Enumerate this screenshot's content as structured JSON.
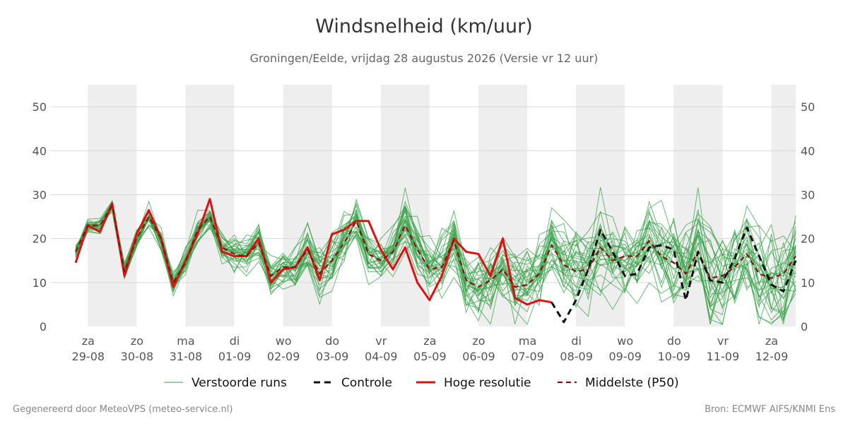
{
  "title": "Windsnelheid (km/uur)",
  "subtitle": "Groningen/Eelde, vrijdag 28 augustus 2026 (Versie vr 12 uur)",
  "footer": {
    "left": "Gegenereerd door MeteoVPS (meteo-service.nl)",
    "right": "Bron: ECMWF AIFS/KNMI Ens"
  },
  "colors": {
    "ensemble": "#3aa14a",
    "control": "#111111",
    "high_res": "#dd1111",
    "median": "#8b1111",
    "night_band": "#eeeeee",
    "grid": "#d9d9d9"
  },
  "chart_data": {
    "type": "line",
    "x_unit": "days since 29-08 00:00",
    "x_range": [
      -0.25,
      14.5
    ],
    "ylim": [
      0,
      55
    ],
    "yticks": [
      0,
      10,
      20,
      30,
      40,
      50
    ],
    "grid": "horizontal",
    "legend_position": "bottom",
    "day_labels": [
      {
        "day": "za",
        "date": "29-08"
      },
      {
        "day": "zo",
        "date": "30-08"
      },
      {
        "day": "ma",
        "date": "31-08"
      },
      {
        "day": "di",
        "date": "01-09"
      },
      {
        "day": "wo",
        "date": "02-09"
      },
      {
        "day": "do",
        "date": "03-09"
      },
      {
        "day": "vr",
        "date": "04-09"
      },
      {
        "day": "za",
        "date": "05-09"
      },
      {
        "day": "zo",
        "date": "06-09"
      },
      {
        "day": "ma",
        "date": "07-09"
      },
      {
        "day": "di",
        "date": "08-09"
      },
      {
        "day": "wo",
        "date": "09-09"
      },
      {
        "day": "do",
        "date": "10-09"
      },
      {
        "day": "vr",
        "date": "11-09"
      },
      {
        "day": "za",
        "date": "12-09"
      }
    ],
    "legend": [
      {
        "key": "ensemble",
        "label": "Verstoorde runs"
      },
      {
        "key": "control",
        "label": "Controle"
      },
      {
        "key": "high_res",
        "label": "Hoge resolutie"
      },
      {
        "key": "median",
        "label": "Middelste (P50)"
      }
    ],
    "series": [
      {
        "name": "Hoge resolutie",
        "key": "high_res",
        "x0": -0.25,
        "dx": 0.25,
        "values": [
          14.5,
          23,
          21.5,
          28,
          11.5,
          21,
          26.5,
          20,
          9,
          15,
          21,
          29,
          17,
          16,
          16,
          20,
          10,
          13,
          13.5,
          18,
          10.5,
          21,
          22,
          24,
          24,
          17.5,
          13,
          18,
          10,
          6,
          11.5,
          20,
          17,
          16.5,
          11.5,
          20,
          6.5,
          5,
          6,
          5.5
        ]
      },
      {
        "name": "Middelste (P50)",
        "key": "median",
        "x0": -0.25,
        "dx": 0.25,
        "values": [
          17,
          23,
          23,
          27.5,
          12.5,
          20,
          25,
          20,
          10,
          14.5,
          22,
          25,
          18,
          16.5,
          16,
          19,
          11.5,
          13.5,
          13.5,
          17.5,
          12,
          15,
          19,
          24,
          16.5,
          15,
          17,
          23,
          17.5,
          13,
          13.5,
          19.5,
          10.5,
          9,
          10.5,
          13,
          9,
          9.5,
          12,
          18.5,
          14,
          12.5,
          13,
          18,
          15,
          16,
          16,
          19.5,
          16,
          14.5,
          12,
          17,
          11,
          11.5,
          13.5,
          16.5,
          12,
          11,
          12,
          16
        ]
      },
      {
        "name": "Controle",
        "key": "control",
        "x0": 9.5,
        "dx": 0.25,
        "values": [
          5.5,
          1,
          6,
          13,
          22,
          17,
          11.5,
          12,
          18,
          18.5,
          17.5,
          6,
          17,
          10.5,
          10,
          15.5,
          22.5,
          16,
          9.5,
          8,
          15
        ]
      }
    ],
    "ensemble_count": 30
  }
}
